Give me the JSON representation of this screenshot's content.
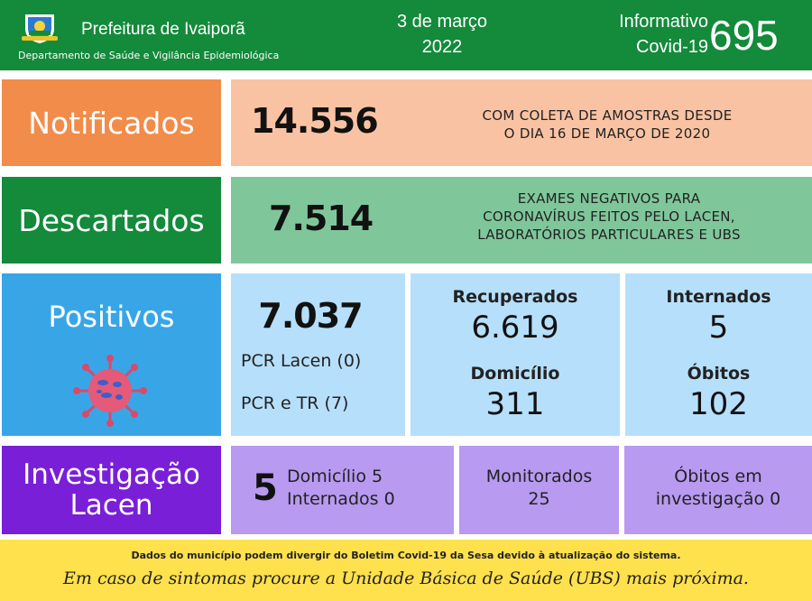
{
  "header": {
    "org_name": "Prefeitura de Ivaiporã",
    "department": "Departamento de Saúde e Vigilância Epidemiológica",
    "date_line1": "3 de março",
    "date_line2": "2022",
    "info_line1": "Informativo",
    "info_line2": "Covid-19",
    "edition": "695",
    "logo_icon": "municipal-crest-icon"
  },
  "notificados": {
    "label": "Notificados",
    "value": "14.556",
    "note_line1": "COM COLETA DE AMOSTRAS DESDE",
    "note_line2": "O DIA 16 DE MARÇO DE 2020"
  },
  "descartados": {
    "label": "Descartados",
    "value": "7.514",
    "note_line1": "EXAMES NEGATIVOS PARA",
    "note_line2": "CORONAVÍRUS FEITOS PELO LACEN,",
    "note_line3": "LABORATÓRIOS PARTICULARES E UBS"
  },
  "positivos": {
    "label": "Positivos",
    "icon": "virus-icon",
    "value": "7.037",
    "pcr_lacen": "PCR Lacen (0)",
    "pcr_tr": "PCR e TR (7)",
    "recuperados_label": "Recuperados",
    "recuperados_value": "6.619",
    "domicilio_label": "Domicílio",
    "domicilio_value": "311",
    "internados_label": "Internados",
    "internados_value": "5",
    "obitos_label": "Óbitos",
    "obitos_value": "102"
  },
  "investigacao": {
    "label_line1": "Investigação",
    "label_line2": "Lacen",
    "value": "5",
    "domicilio": "Domicílio 5",
    "internados": "Internados 0",
    "monitorados_label": "Monitorados",
    "monitorados_value": "25",
    "obitos_line1": "Óbitos em",
    "obitos_line2": "investigação 0"
  },
  "footer": {
    "note": "Dados do município podem divergir do Boletim Covid-19 da Sesa devido à atualização do sistema.",
    "tip": "Em caso de sintomas procure a Unidade Básica de Saúde (UBS) mais próxima."
  },
  "colors": {
    "green": "#148a3b",
    "orange": "#f28c4a",
    "blue": "#38a6e6",
    "purple": "#7a1fd8",
    "yellow": "#ffe14d"
  }
}
